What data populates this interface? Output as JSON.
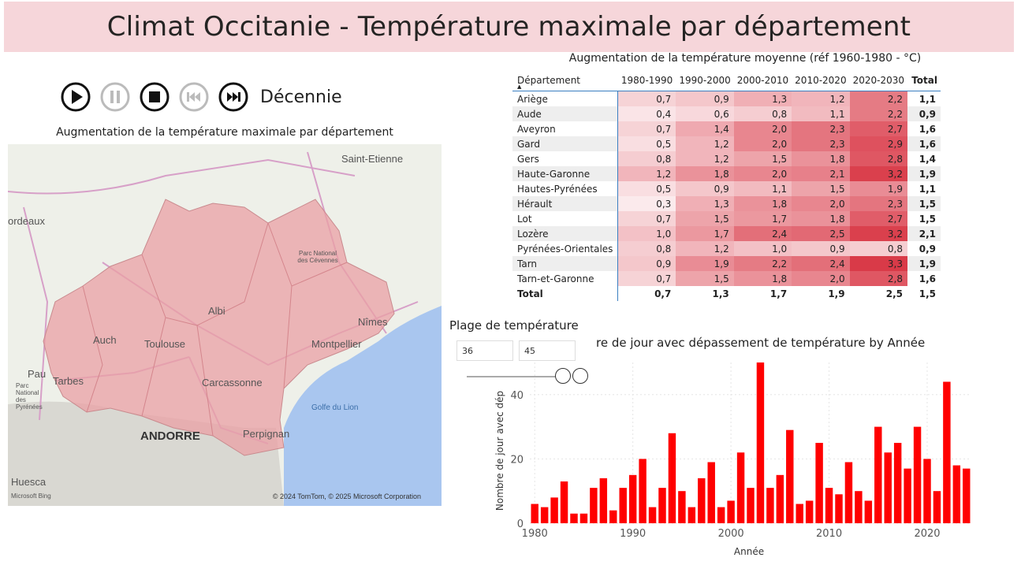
{
  "title": "Climat Occitanie - Température maximale par département",
  "controls": {
    "play_icon": "play-icon",
    "pause_icon": "pause-icon",
    "stop_icon": "stop-icon",
    "prev_icon": "skip-back-icon",
    "next_icon": "skip-forward-icon",
    "label": "Décennie"
  },
  "map": {
    "title": "Augmentation de la température maximale par département",
    "labels": {
      "saint_etienne": "Saint-Etienne",
      "bordeaux": "ordeaux",
      "albi": "Albi",
      "auch": "Auch",
      "toulouse": "Toulouse",
      "nimes": "Nîmes",
      "montpellier": "Montpellier",
      "pau": "Pau",
      "tarbes": "Tarbes",
      "carcassonne": "Carcassonne",
      "perpignan": "Perpignan",
      "andorre": "ANDORRE",
      "golfe": "Golfe du Lion",
      "huesca": "Huesca",
      "parc_cevennes": "Parc National des Cévennes",
      "parc_pyrenees": "Parc National des Pyrénées"
    },
    "attribution": "© 2024 TomTom, © 2025 Microsoft Corporation",
    "bing": "Microsoft Bing",
    "colors": {
      "water": "#a9c6ef",
      "land": "#eef0e9",
      "region": "#e9a0a4"
    }
  },
  "table": {
    "title": "Augmentation de la température moyenne (réf 1960-1980 - °C)",
    "headers": [
      "Département",
      "1980-1990",
      "1990-2000",
      "2000-2010",
      "2010-2020",
      "2020-2030",
      "Total"
    ],
    "rows": [
      {
        "dep": "Ariège",
        "v": [
          "0,7",
          "0,9",
          "1,3",
          "1,2",
          "2,2"
        ],
        "total": "1,1"
      },
      {
        "dep": "Aude",
        "v": [
          "0,4",
          "0,6",
          "0,8",
          "1,1",
          "2,2"
        ],
        "total": "0,9"
      },
      {
        "dep": "Aveyron",
        "v": [
          "0,7",
          "1,4",
          "2,0",
          "2,3",
          "2,7"
        ],
        "total": "1,6"
      },
      {
        "dep": "Gard",
        "v": [
          "0,5",
          "1,2",
          "2,0",
          "2,3",
          "2,9"
        ],
        "total": "1,6"
      },
      {
        "dep": "Gers",
        "v": [
          "0,8",
          "1,2",
          "1,5",
          "1,8",
          "2,8"
        ],
        "total": "1,4"
      },
      {
        "dep": "Haute-Garonne",
        "v": [
          "1,2",
          "1,8",
          "2,0",
          "2,1",
          "3,2"
        ],
        "total": "1,9"
      },
      {
        "dep": "Hautes-Pyrénées",
        "v": [
          "0,5",
          "0,9",
          "1,1",
          "1,5",
          "1,9"
        ],
        "total": "1,1"
      },
      {
        "dep": "Hérault",
        "v": [
          "0,3",
          "1,3",
          "1,8",
          "2,0",
          "2,3"
        ],
        "total": "1,5"
      },
      {
        "dep": "Lot",
        "v": [
          "0,7",
          "1,5",
          "1,7",
          "1,8",
          "2,7"
        ],
        "total": "1,5"
      },
      {
        "dep": "Lozère",
        "v": [
          "1,0",
          "1,7",
          "2,4",
          "2,5",
          "3,2"
        ],
        "total": "2,1"
      },
      {
        "dep": "Pyrénées-Orientales",
        "v": [
          "0,8",
          "1,2",
          "1,0",
          "0,9",
          "0,8"
        ],
        "total": "0,9"
      },
      {
        "dep": "Tarn",
        "v": [
          "0,9",
          "1,9",
          "2,2",
          "2,4",
          "3,3"
        ],
        "total": "1,9"
      },
      {
        "dep": "Tarn-et-Garonne",
        "v": [
          "0,7",
          "1,5",
          "1,8",
          "2,0",
          "2,8"
        ],
        "total": "1,6"
      }
    ],
    "total_row": {
      "dep": "Total",
      "v": [
        "0,7",
        "1,3",
        "1,7",
        "1,9",
        "2,5"
      ],
      "total": "1,5"
    },
    "colors": {
      "low": "#fbeaec",
      "high": "#d93a48"
    }
  },
  "slicer": {
    "title": "Plage de température",
    "min": "36",
    "max": "45"
  },
  "chart_data": {
    "type": "bar",
    "title": "re de jour avec dépassement de température by Année",
    "xlabel": "Année",
    "ylabel": "Nombre de jour avec dép",
    "x": [
      1980,
      1981,
      1982,
      1983,
      1984,
      1985,
      1986,
      1987,
      1988,
      1989,
      1990,
      1991,
      1992,
      1993,
      1994,
      1995,
      1996,
      1997,
      1998,
      1999,
      2000,
      2001,
      2002,
      2003,
      2004,
      2005,
      2006,
      2007,
      2008,
      2009,
      2010,
      2011,
      2012,
      2013,
      2014,
      2015,
      2016,
      2017,
      2018,
      2019,
      2020,
      2021,
      2022,
      2023,
      2024
    ],
    "values": [
      6,
      5,
      8,
      13,
      3,
      3,
      11,
      14,
      4,
      11,
      15,
      20,
      5,
      11,
      28,
      10,
      5,
      14,
      19,
      5,
      7,
      22,
      11,
      50,
      11,
      15,
      29,
      6,
      7,
      25,
      11,
      9,
      19,
      10,
      7,
      30,
      22,
      25,
      17,
      30,
      20,
      10,
      44,
      18,
      17
    ],
    "xticks": [
      1980,
      1990,
      2000,
      2010,
      2020
    ],
    "yticks": [
      0,
      20,
      40
    ],
    "ylim": [
      0,
      50
    ],
    "color": "#ff0000"
  }
}
